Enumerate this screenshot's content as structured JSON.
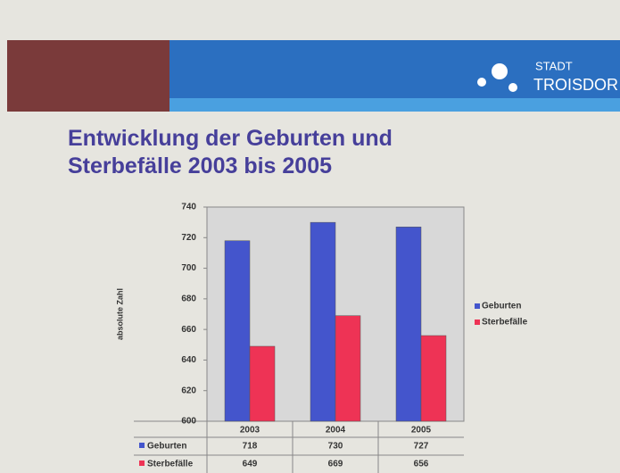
{
  "header": {
    "logo_top": "STADT",
    "logo_bottom": "TROISDOR"
  },
  "chart_data": {
    "type": "bar",
    "title": "Entwicklung der Geburten und Sterbefälle 2003 bis 2005",
    "y_label": "absolute Zahl",
    "categories": [
      "2003",
      "2004",
      "2005"
    ],
    "series": [
      {
        "name": "Geburten",
        "color": "#4455cc",
        "values": [
          718,
          730,
          727
        ]
      },
      {
        "name": "Sterbefälle",
        "color": "#ee3355",
        "values": [
          649,
          669,
          656
        ]
      }
    ],
    "ylim": [
      600,
      740
    ],
    "yticks": [
      600,
      620,
      640,
      660,
      680,
      700,
      720,
      740
    ],
    "grid": false,
    "legend": "right",
    "data_table": true
  }
}
